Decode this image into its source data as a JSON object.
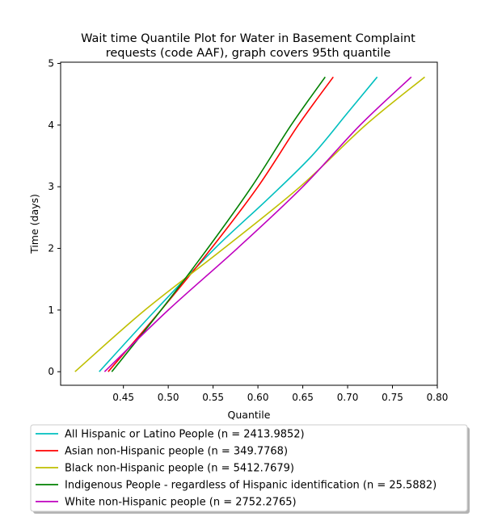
{
  "chart_data": {
    "type": "line",
    "title_lines": [
      "Wait time Quantile Plot for Water in Basement Complaint",
      "requests (code AAF), graph covers 95th quantile"
    ],
    "xlabel": "Quantile",
    "ylabel": "Time (days)",
    "xlim": [
      0.38,
      0.8
    ],
    "ylim": [
      -0.22,
      5.02
    ],
    "x_ticks": [
      0.45,
      0.5,
      0.55,
      0.6,
      0.65,
      0.7,
      0.75,
      0.8
    ],
    "x_tick_labels": [
      "0.45",
      "0.50",
      "0.55",
      "0.60",
      "0.65",
      "0.70",
      "0.75",
      "0.80"
    ],
    "y_ticks": [
      0,
      1,
      2,
      3,
      4,
      5
    ],
    "y_tick_labels": [
      "0",
      "1",
      "2",
      "3",
      "4",
      "5"
    ],
    "grid": false,
    "legend_position": "below",
    "series": [
      {
        "name": "All Hispanic or Latino People (n = 2413.9852)",
        "color": "#00bfbf",
        "points": [
          [
            0.423,
            0.0
          ],
          [
            0.486,
            1.0
          ],
          [
            0.552,
            2.0
          ],
          [
            0.611,
            2.8
          ],
          [
            0.66,
            3.5
          ],
          [
            0.7,
            4.2
          ],
          [
            0.733,
            4.78
          ]
        ]
      },
      {
        "name": "Asian non-Hispanic people (n = 349.7768)",
        "color": "#ff0000",
        "points": [
          [
            0.433,
            0.0
          ],
          [
            0.492,
            1.0
          ],
          [
            0.548,
            2.0
          ],
          [
            0.6,
            3.0
          ],
          [
            0.645,
            4.0
          ],
          [
            0.684,
            4.78
          ]
        ]
      },
      {
        "name": "Black non-Hispanic people (n = 5412.7679)",
        "color": "#bfbf00",
        "points": [
          [
            0.396,
            0.0
          ],
          [
            0.474,
            1.0
          ],
          [
            0.562,
            2.0
          ],
          [
            0.647,
            3.0
          ],
          [
            0.72,
            4.0
          ],
          [
            0.786,
            4.78
          ]
        ]
      },
      {
        "name": "Indigenous People - regardless of Hispanic identification (n = 25.5882)",
        "color": "#008000",
        "points": [
          [
            0.437,
            0.0
          ],
          [
            0.492,
            1.0
          ],
          [
            0.544,
            2.0
          ],
          [
            0.593,
            3.0
          ],
          [
            0.637,
            4.0
          ],
          [
            0.675,
            4.78
          ]
        ]
      },
      {
        "name": "White non-Hispanic people (n = 2752.2765)",
        "color": "#bf00bf",
        "points": [
          [
            0.429,
            0.0
          ],
          [
            0.5,
            1.0
          ],
          [
            0.577,
            2.0
          ],
          [
            0.65,
            3.0
          ],
          [
            0.714,
            4.0
          ],
          [
            0.771,
            4.78
          ]
        ]
      }
    ]
  }
}
